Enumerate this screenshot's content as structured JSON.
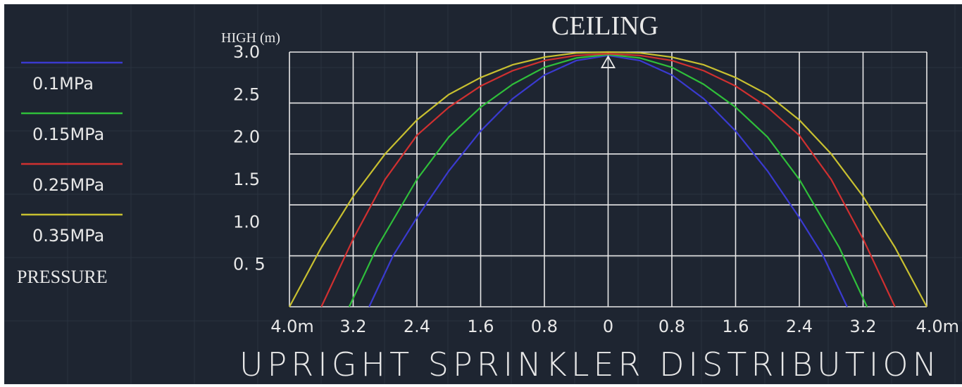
{
  "colors": {
    "background": "#1e2531",
    "grid": "#e8e8e8",
    "text": "#e8e8e8"
  },
  "chart_data": {
    "type": "line",
    "title": "CEILING",
    "subtitle": "UPRIGHT SPRINKLER DISTRIBUTION",
    "ylabel": "HIGH (m)",
    "legend_title": "PRESSURE",
    "legend_position": "left",
    "grid": true,
    "xlim": [
      -4.0,
      4.0
    ],
    "ylim": [
      0,
      3.0
    ],
    "x_tick_labels": [
      {
        "x": -4.0,
        "label": "4.0m"
      },
      {
        "x": -3.2,
        "label": "3.2"
      },
      {
        "x": -2.4,
        "label": "2.4"
      },
      {
        "x": -1.6,
        "label": "1.6"
      },
      {
        "x": -0.8,
        "label": "0.8"
      },
      {
        "x": 0.0,
        "label": "0"
      },
      {
        "x": 0.8,
        "label": "0.8"
      },
      {
        "x": 1.6,
        "label": "1.6"
      },
      {
        "x": 2.4,
        "label": "2.4"
      },
      {
        "x": 3.2,
        "label": "3.2"
      },
      {
        "x": 4.0,
        "label": "4.0m"
      }
    ],
    "y_tick_labels": [
      {
        "y": 3.0,
        "label": "3.0"
      },
      {
        "y": 2.5,
        "label": "2.5"
      },
      {
        "y": 2.0,
        "label": "2.0"
      },
      {
        "y": 1.5,
        "label": "1.5"
      },
      {
        "y": 1.0,
        "label": "1.0"
      },
      {
        "y": 0.5,
        "label": "0. 5"
      }
    ],
    "sprinkler_marker": {
      "x": 0.0,
      "y": 2.9
    },
    "series": [
      {
        "name": "0.1MPa",
        "color": "#3a3ad0",
        "points": [
          [
            -3.0,
            0
          ],
          [
            -2.7,
            0.6
          ],
          [
            -2.4,
            1.05
          ],
          [
            -2.0,
            1.6
          ],
          [
            -1.6,
            2.07
          ],
          [
            -1.2,
            2.45
          ],
          [
            -0.8,
            2.73
          ],
          [
            -0.4,
            2.9
          ],
          [
            0,
            2.96
          ],
          [
            0.4,
            2.9
          ],
          [
            0.8,
            2.73
          ],
          [
            1.2,
            2.45
          ],
          [
            1.6,
            2.07
          ],
          [
            2.0,
            1.6
          ],
          [
            2.4,
            1.05
          ],
          [
            2.7,
            0.6
          ],
          [
            3.0,
            0
          ]
        ]
      },
      {
        "name": "0.15MPa",
        "color": "#2fbf3a",
        "points": [
          [
            -3.25,
            0
          ],
          [
            -2.9,
            0.7
          ],
          [
            -2.4,
            1.5
          ],
          [
            -2.0,
            2.0
          ],
          [
            -1.6,
            2.35
          ],
          [
            -1.2,
            2.62
          ],
          [
            -0.8,
            2.82
          ],
          [
            -0.4,
            2.93
          ],
          [
            0,
            2.97
          ],
          [
            0.4,
            2.93
          ],
          [
            0.8,
            2.82
          ],
          [
            1.2,
            2.62
          ],
          [
            1.6,
            2.35
          ],
          [
            2.0,
            2.0
          ],
          [
            2.4,
            1.5
          ],
          [
            2.9,
            0.7
          ],
          [
            3.25,
            0
          ]
        ]
      },
      {
        "name": "0.25MPa",
        "color": "#d03030",
        "points": [
          [
            -3.6,
            0
          ],
          [
            -3.2,
            0.8
          ],
          [
            -2.8,
            1.5
          ],
          [
            -2.4,
            2.02
          ],
          [
            -2.0,
            2.35
          ],
          [
            -1.6,
            2.6
          ],
          [
            -1.2,
            2.78
          ],
          [
            -0.8,
            2.9
          ],
          [
            -0.4,
            2.96
          ],
          [
            0,
            2.98
          ],
          [
            0.4,
            2.96
          ],
          [
            0.8,
            2.9
          ],
          [
            1.2,
            2.78
          ],
          [
            1.6,
            2.6
          ],
          [
            2.0,
            2.35
          ],
          [
            2.4,
            2.02
          ],
          [
            2.8,
            1.5
          ],
          [
            3.2,
            0.8
          ],
          [
            3.6,
            0
          ]
        ]
      },
      {
        "name": "0.35MPa",
        "color": "#c8c030",
        "points": [
          [
            -4.0,
            0
          ],
          [
            -3.6,
            0.7
          ],
          [
            -3.2,
            1.3
          ],
          [
            -2.8,
            1.8
          ],
          [
            -2.4,
            2.2
          ],
          [
            -2.0,
            2.5
          ],
          [
            -1.6,
            2.7
          ],
          [
            -1.2,
            2.85
          ],
          [
            -0.8,
            2.94
          ],
          [
            -0.4,
            2.99
          ],
          [
            0,
            3.0
          ],
          [
            0.4,
            2.99
          ],
          [
            0.8,
            2.94
          ],
          [
            1.2,
            2.85
          ],
          [
            1.6,
            2.7
          ],
          [
            2.0,
            2.5
          ],
          [
            2.4,
            2.2
          ],
          [
            2.8,
            1.8
          ],
          [
            3.2,
            1.3
          ],
          [
            3.6,
            0.7
          ],
          [
            4.0,
            0
          ]
        ]
      }
    ]
  }
}
